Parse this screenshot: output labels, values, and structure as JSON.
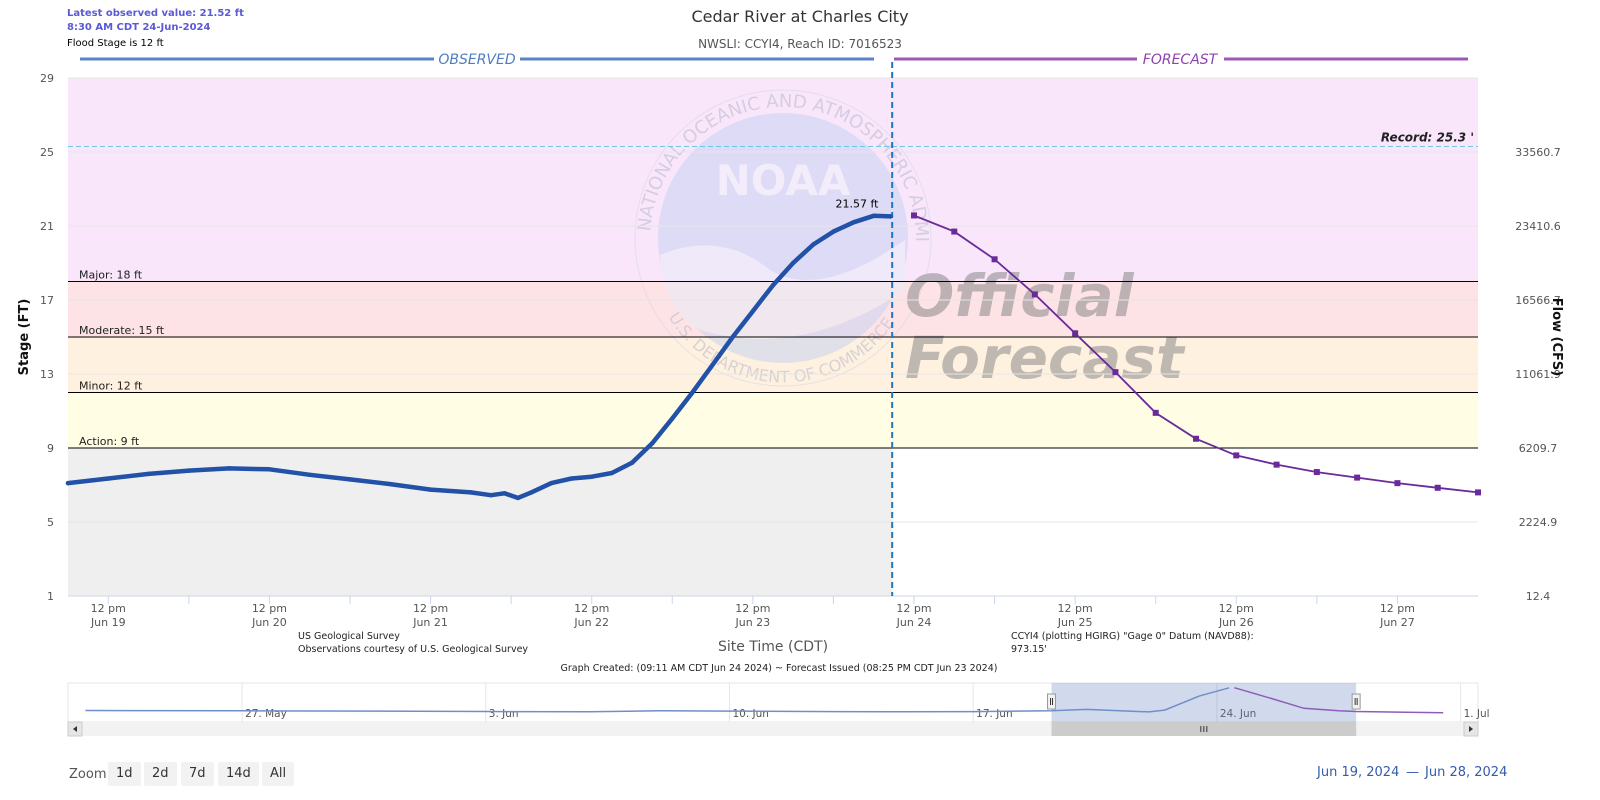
{
  "header": {
    "latest_value": "Latest observed value: 21.52 ft",
    "latest_time": "8:30 AM CDT 24-Jun-2024",
    "flood_stage": "Flood Stage is 12 ft",
    "title": "Cedar River at Charles City",
    "subtitle": "NWSLI: CCYI4, Reach ID: 7016523"
  },
  "sections": {
    "observed": "OBSERVED",
    "forecast": "FORECAST"
  },
  "watermark": {
    "seal_top": "NATIONAL OCEANIC AND ATMOSPHERIC ADMINISTRATION",
    "seal_bottom": "U.S. DEPARTMENT OF COMMERCE",
    "logo": "NOAA",
    "stamp1": "Official",
    "stamp2": "Forecast"
  },
  "colors": {
    "observed": "#2251a8",
    "forecast": "#6a2a9a",
    "band_record": "#f9e6fb",
    "band_major": "#fde3e6",
    "band_moderate": "#fef1e0",
    "band_minor": "#fffde3",
    "band_normal": "#efefef"
  },
  "chart_data": {
    "type": "line",
    "title": "Cedar River at Charles City",
    "xlabel": "Site Time (CDT)",
    "ylabel": "Stage (FT)",
    "y2label": "Flow (CFS)",
    "ylim": [
      1,
      29
    ],
    "xlim": [
      "2024-06-19 06:00",
      "2024-06-28 00:00"
    ],
    "y_ticks": [
      "1",
      "5",
      "9",
      "13",
      "17",
      "21",
      "25",
      "29"
    ],
    "y2_ticks": [
      {
        "stage": 1,
        "label": "12.4"
      },
      {
        "stage": 5,
        "label": "2224.9"
      },
      {
        "stage": 9,
        "label": "6209.7"
      },
      {
        "stage": 13,
        "label": "11061.9"
      },
      {
        "stage": 17,
        "label": "16566.7"
      },
      {
        "stage": 21,
        "label": "23410.6"
      },
      {
        "stage": 25,
        "label": "33560.7"
      }
    ],
    "x_ticks": [
      {
        "t": "2024-06-19 12:00",
        "l1": "12 pm",
        "l2": "Jun 19"
      },
      {
        "t": "2024-06-20 12:00",
        "l1": "12 pm",
        "l2": "Jun 20"
      },
      {
        "t": "2024-06-21 12:00",
        "l1": "12 pm",
        "l2": "Jun 21"
      },
      {
        "t": "2024-06-22 12:00",
        "l1": "12 pm",
        "l2": "Jun 22"
      },
      {
        "t": "2024-06-23 12:00",
        "l1": "12 pm",
        "l2": "Jun 23"
      },
      {
        "t": "2024-06-24 12:00",
        "l1": "12 pm",
        "l2": "Jun 24"
      },
      {
        "t": "2024-06-25 12:00",
        "l1": "12 pm",
        "l2": "Jun 25"
      },
      {
        "t": "2024-06-26 12:00",
        "l1": "12 pm",
        "l2": "Jun 26"
      },
      {
        "t": "2024-06-27 12:00",
        "l1": "12 pm",
        "l2": "Jun 27"
      }
    ],
    "thresholds": [
      {
        "name": "Action: 9 ft",
        "value": 9
      },
      {
        "name": "Minor: 12 ft",
        "value": 12
      },
      {
        "name": "Moderate: 15 ft",
        "value": 15
      },
      {
        "name": "Major: 18 ft",
        "value": 18
      }
    ],
    "record": {
      "label": "Record: 25.3 '",
      "value": 25.3
    },
    "issued_time": "2024-06-24 08:45",
    "peak_label": {
      "text": "21.57 ft",
      "t": "2024-06-24 05:00",
      "value": 21.57
    },
    "series": [
      {
        "kind": "observed",
        "points": [
          [
            "2024-06-19 06:00",
            7.1
          ],
          [
            "2024-06-19 12:00",
            7.35
          ],
          [
            "2024-06-19 18:00",
            7.6
          ],
          [
            "2024-06-20 00:00",
            7.78
          ],
          [
            "2024-06-20 06:00",
            7.9
          ],
          [
            "2024-06-20 12:00",
            7.85
          ],
          [
            "2024-06-20 18:00",
            7.55
          ],
          [
            "2024-06-21 00:00",
            7.3
          ],
          [
            "2024-06-21 06:00",
            7.05
          ],
          [
            "2024-06-21 12:00",
            6.75
          ],
          [
            "2024-06-21 18:00",
            6.6
          ],
          [
            "2024-06-21 21:00",
            6.45
          ],
          [
            "2024-06-21 23:00",
            6.55
          ],
          [
            "2024-06-22 01:00",
            6.3
          ],
          [
            "2024-06-22 03:00",
            6.6
          ],
          [
            "2024-06-22 06:00",
            7.1
          ],
          [
            "2024-06-22 09:00",
            7.35
          ],
          [
            "2024-06-22 12:00",
            7.45
          ],
          [
            "2024-06-22 15:00",
            7.65
          ],
          [
            "2024-06-22 18:00",
            8.2
          ],
          [
            "2024-06-22 21:00",
            9.25
          ],
          [
            "2024-06-23 00:00",
            10.6
          ],
          [
            "2024-06-23 03:00",
            12.0
          ],
          [
            "2024-06-23 06:00",
            13.5
          ],
          [
            "2024-06-23 09:00",
            15.0
          ],
          [
            "2024-06-23 12:00",
            16.4
          ],
          [
            "2024-06-23 15:00",
            17.8
          ],
          [
            "2024-06-23 18:00",
            19.0
          ],
          [
            "2024-06-23 21:00",
            20.0
          ],
          [
            "2024-06-24 00:00",
            20.7
          ],
          [
            "2024-06-24 03:00",
            21.2
          ],
          [
            "2024-06-24 06:00",
            21.55
          ],
          [
            "2024-06-24 08:30",
            21.52
          ]
        ]
      },
      {
        "kind": "forecast",
        "points": [
          [
            "2024-06-24 12:00",
            21.57
          ],
          [
            "2024-06-24 18:00",
            20.7
          ],
          [
            "2024-06-25 00:00",
            19.2
          ],
          [
            "2024-06-25 06:00",
            17.3
          ],
          [
            "2024-06-25 12:00",
            15.2
          ],
          [
            "2024-06-25 18:00",
            13.1
          ],
          [
            "2024-06-26 00:00",
            10.9
          ],
          [
            "2024-06-26 06:00",
            9.5
          ],
          [
            "2024-06-26 12:00",
            8.6
          ],
          [
            "2024-06-26 18:00",
            8.1
          ],
          [
            "2024-06-27 00:00",
            7.7
          ],
          [
            "2024-06-27 06:00",
            7.4
          ],
          [
            "2024-06-27 12:00",
            7.1
          ],
          [
            "2024-06-27 18:00",
            6.85
          ],
          [
            "2024-06-28 00:00",
            6.6
          ]
        ]
      }
    ]
  },
  "footer": {
    "usgs_line1": "US Geological Survey",
    "usgs_line2": "Observations courtesy of U.S. Geological Survey",
    "datum_line1": "CCYI4 (plotting HGIRG) \"Gage 0\" Datum (NAVD88):",
    "datum_line2": "973.15'",
    "graph_created": "Graph Created: (09:11 AM CDT Jun 24 2024) ~ Forecast Issued (08:25 PM CDT Jun 23 2024)"
  },
  "navigator": {
    "xlim": [
      "2024-05-22 00:00",
      "2024-07-01 12:00"
    ],
    "selection": [
      "2024-06-19 06:00",
      "2024-06-28 00:00"
    ],
    "labels": [
      {
        "t": "2024-05-27 00:00",
        "label": "27. May"
      },
      {
        "t": "2024-06-03 00:00",
        "label": "3. Jun"
      },
      {
        "t": "2024-06-10 00:00",
        "label": "10. Jun"
      },
      {
        "t": "2024-06-17 00:00",
        "label": "17. Jun"
      },
      {
        "t": "2024-06-24 00:00",
        "label": "24. Jun"
      },
      {
        "t": "2024-07-01 00:00",
        "label": "1. Jul"
      }
    ],
    "series": [
      [
        "2024-05-22 12:00",
        7.2
      ],
      [
        "2024-05-27 00:00",
        7.0
      ],
      [
        "2024-05-31 00:00",
        6.8
      ],
      [
        "2024-06-03 00:00",
        6.6
      ],
      [
        "2024-06-06 00:00",
        6.4
      ],
      [
        "2024-06-08 00:00",
        7.0
      ],
      [
        "2024-06-10 00:00",
        6.8
      ],
      [
        "2024-06-13 00:00",
        6.5
      ],
      [
        "2024-06-15 00:00",
        6.4
      ],
      [
        "2024-06-17 00:00",
        6.5
      ],
      [
        "2024-06-19 06:00",
        7.1
      ],
      [
        "2024-06-20 06:00",
        7.9
      ],
      [
        "2024-06-22 01:00",
        6.3
      ],
      [
        "2024-06-22 12:00",
        7.45
      ],
      [
        "2024-06-23 12:00",
        16.4
      ],
      [
        "2024-06-24 08:30",
        21.52
      ]
    ],
    "forecast": [
      [
        "2024-06-24 12:00",
        21.57
      ],
      [
        "2024-06-25 12:00",
        15.2
      ],
      [
        "2024-06-26 12:00",
        8.6
      ],
      [
        "2024-06-27 12:00",
        7.1
      ],
      [
        "2024-06-28 00:00",
        6.6
      ],
      [
        "2024-06-30 12:00",
        5.8
      ]
    ]
  },
  "zoom": {
    "label": "Zoom",
    "buttons": [
      "1d",
      "2d",
      "7d",
      "14d",
      "All"
    ]
  },
  "range": {
    "from": "Jun 19, 2024",
    "sep": "—",
    "to": "Jun 28, 2024"
  }
}
